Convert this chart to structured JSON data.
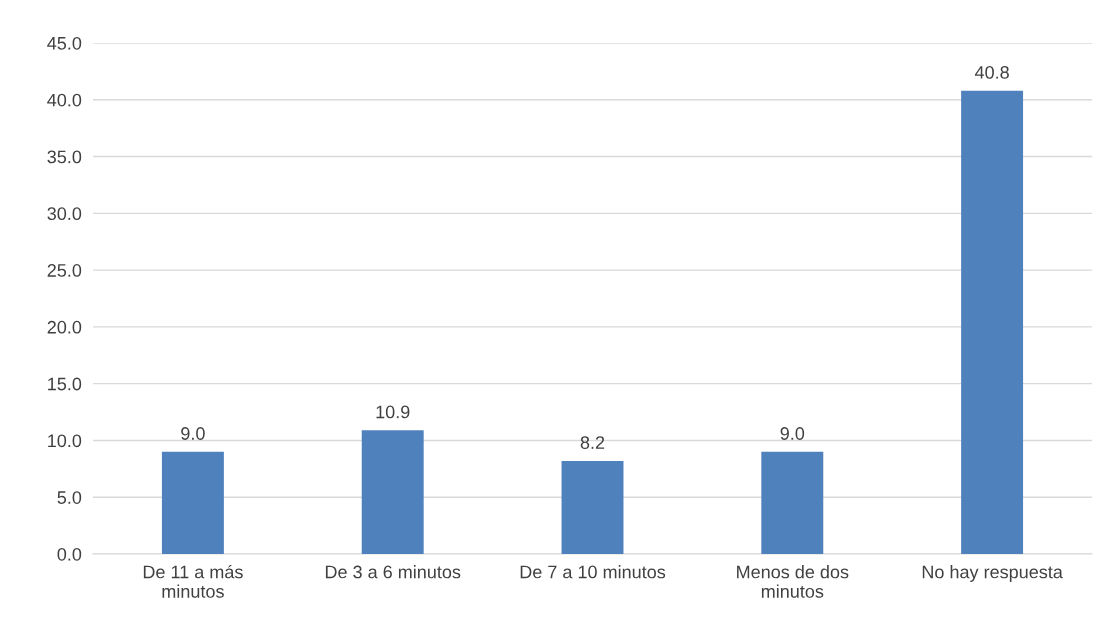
{
  "chart_data": {
    "type": "bar",
    "categories": [
      "De 11 a más\nminutos",
      "De 3 a 6 minutos",
      "De 7 a 10 minutos",
      "Menos de dos\nminutos",
      "No hay respuesta"
    ],
    "values": [
      9.0,
      10.9,
      8.2,
      9.0,
      40.8
    ],
    "color": "#4f81bd",
    "ylim": [
      0,
      45
    ],
    "yticks": [
      {
        "value": 0,
        "label": "0.0"
      },
      {
        "value": 5,
        "label": "5.0"
      },
      {
        "value": 10,
        "label": "10.0"
      },
      {
        "value": 15,
        "label": "15.0"
      },
      {
        "value": 20,
        "label": "20.0"
      },
      {
        "value": 25,
        "label": "25.0"
      },
      {
        "value": 30,
        "label": "30.0"
      },
      {
        "value": 35,
        "label": "35.0"
      },
      {
        "value": 40,
        "label": "40.0"
      },
      {
        "value": 45,
        "label": "45.0"
      }
    ],
    "grid": "y",
    "value_labels": [
      "9.0",
      "10.9",
      "8.2",
      "9.0",
      "40.8"
    ]
  }
}
